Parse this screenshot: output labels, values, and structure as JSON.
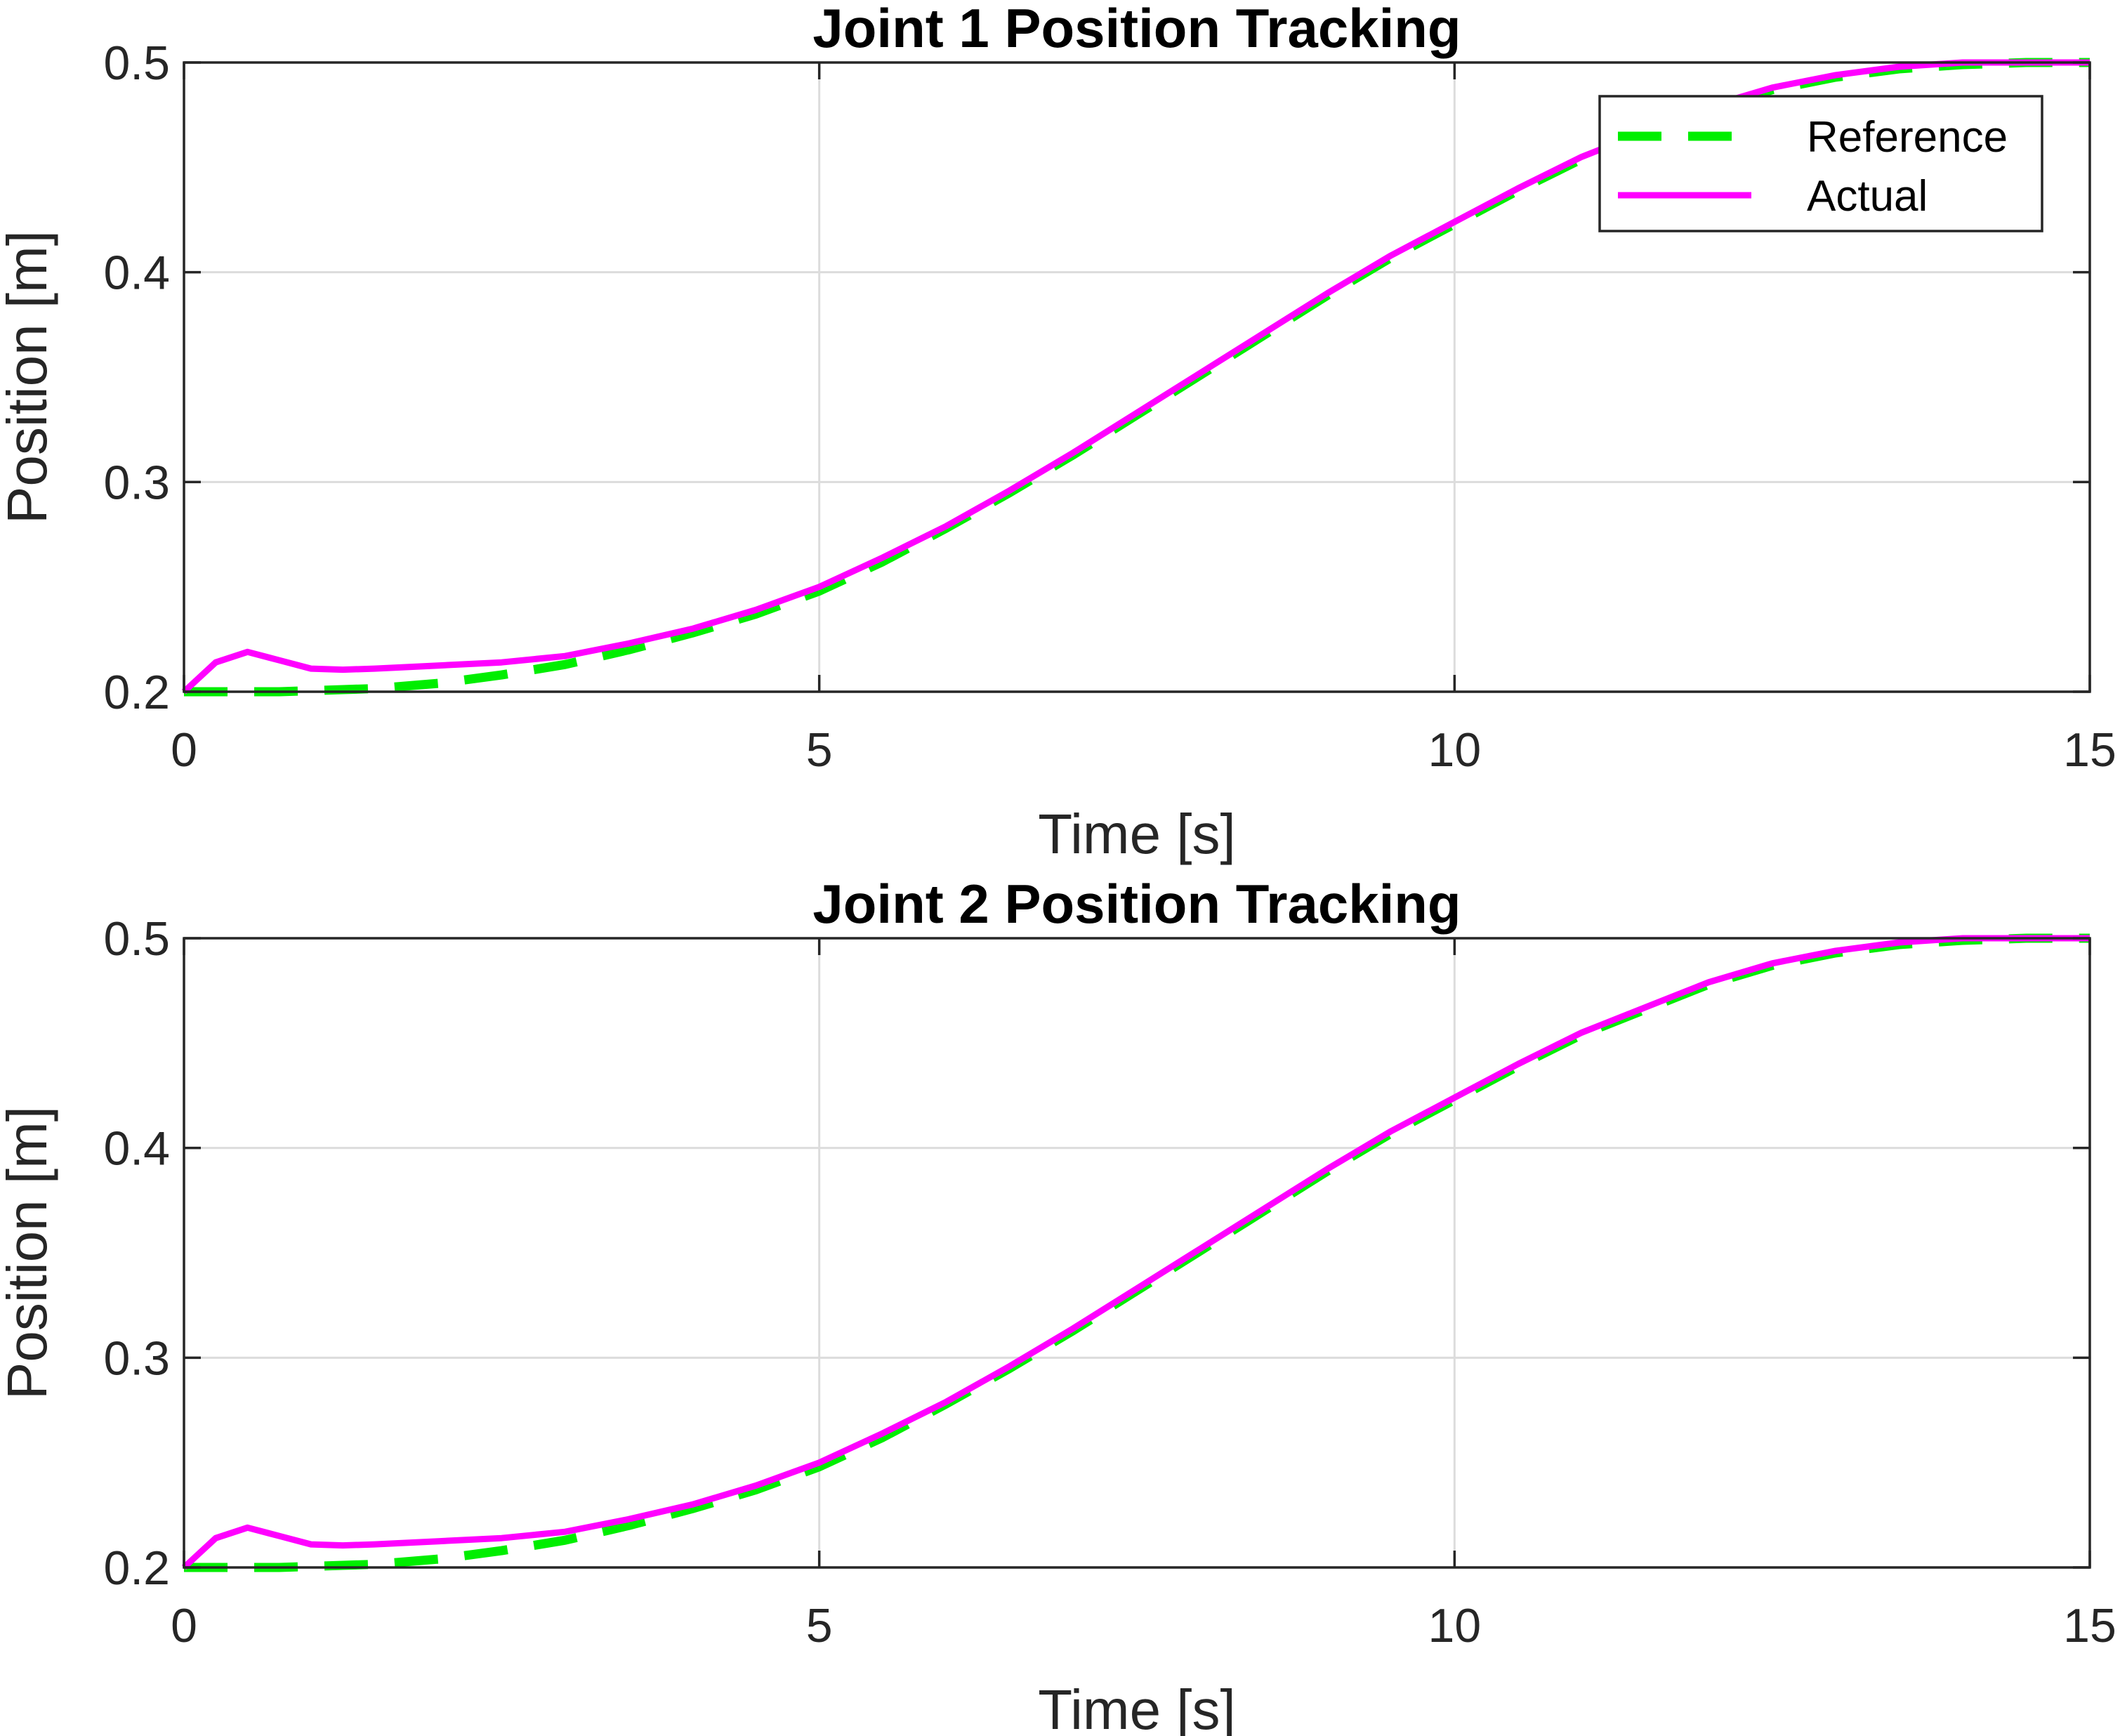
{
  "chart_data": [
    {
      "type": "line",
      "title": "Joint 1 Position Tracking",
      "xlabel": "Time [s]",
      "ylabel": "Position [m]",
      "xlim": [
        0,
        15
      ],
      "ylim": [
        0.2,
        0.5
      ],
      "xticks": [
        "0",
        "5",
        "10",
        "15"
      ],
      "yticks": [
        "0.2",
        "0.3",
        "0.4",
        "0.5"
      ],
      "grid": true,
      "legend": {
        "placement": "top-right",
        "entries": [
          "Reference",
          "Actual"
        ]
      },
      "x": [
        0,
        0.25,
        0.5,
        0.75,
        1,
        1.25,
        1.5,
        2,
        2.5,
        3,
        3.5,
        4,
        4.5,
        5,
        5.5,
        6,
        6.5,
        7,
        7.5,
        8,
        8.5,
        9,
        9.5,
        10,
        10.5,
        11,
        11.5,
        12,
        12.5,
        13,
        13.5,
        14,
        14.5,
        15
      ],
      "series": [
        {
          "name": "Reference",
          "color": "#00ee00",
          "style": "dashed",
          "values": [
            0.2,
            0.2,
            0.2,
            0.2,
            0.2005,
            0.201,
            0.2015,
            0.204,
            0.208,
            0.213,
            0.22,
            0.228,
            0.237,
            0.248,
            0.262,
            0.278,
            0.295,
            0.313,
            0.332,
            0.351,
            0.37,
            0.389,
            0.407,
            0.423,
            0.439,
            0.454,
            0.466,
            0.478,
            0.487,
            0.493,
            0.497,
            0.499,
            0.5,
            0.5
          ]
        },
        {
          "name": "Actual",
          "color": "#ff00ff",
          "style": "solid",
          "values": [
            0.2,
            0.214,
            0.219,
            0.215,
            0.211,
            0.2105,
            0.211,
            0.2125,
            0.214,
            0.217,
            0.223,
            0.23,
            0.239,
            0.25,
            0.264,
            0.279,
            0.296,
            0.314,
            0.333,
            0.352,
            0.371,
            0.39,
            0.408,
            0.424,
            0.44,
            0.455,
            0.467,
            0.479,
            0.488,
            0.494,
            0.498,
            0.5,
            0.5,
            0.5
          ]
        }
      ]
    },
    {
      "type": "line",
      "title": "Joint 2 Position Tracking",
      "xlabel": "Time [s]",
      "ylabel": "Position [m]",
      "xlim": [
        0,
        15
      ],
      "ylim": [
        0.2,
        0.5
      ],
      "xticks": [
        "0",
        "5",
        "10",
        "15"
      ],
      "yticks": [
        "0.2",
        "0.3",
        "0.4",
        "0.5"
      ],
      "grid": true,
      "x": [
        0,
        0.25,
        0.5,
        0.75,
        1,
        1.25,
        1.5,
        2,
        2.5,
        3,
        3.5,
        4,
        4.5,
        5,
        5.5,
        6,
        6.5,
        7,
        7.5,
        8,
        8.5,
        9,
        9.5,
        10,
        10.5,
        11,
        11.5,
        12,
        12.5,
        13,
        13.5,
        14,
        14.5,
        15
      ],
      "series": [
        {
          "name": "Reference",
          "color": "#00ee00",
          "style": "dashed",
          "values": [
            0.2,
            0.2,
            0.2,
            0.2,
            0.2005,
            0.201,
            0.2015,
            0.204,
            0.208,
            0.213,
            0.22,
            0.228,
            0.237,
            0.248,
            0.262,
            0.278,
            0.295,
            0.313,
            0.332,
            0.351,
            0.37,
            0.389,
            0.407,
            0.423,
            0.439,
            0.454,
            0.466,
            0.478,
            0.487,
            0.493,
            0.497,
            0.499,
            0.5,
            0.5
          ]
        },
        {
          "name": "Actual",
          "color": "#ff00ff",
          "style": "solid",
          "values": [
            0.2,
            0.214,
            0.219,
            0.215,
            0.211,
            0.2105,
            0.211,
            0.2125,
            0.214,
            0.217,
            0.223,
            0.23,
            0.239,
            0.25,
            0.264,
            0.279,
            0.296,
            0.314,
            0.333,
            0.352,
            0.371,
            0.39,
            0.408,
            0.424,
            0.44,
            0.455,
            0.467,
            0.479,
            0.488,
            0.494,
            0.498,
            0.5,
            0.5,
            0.5
          ]
        }
      ]
    }
  ]
}
